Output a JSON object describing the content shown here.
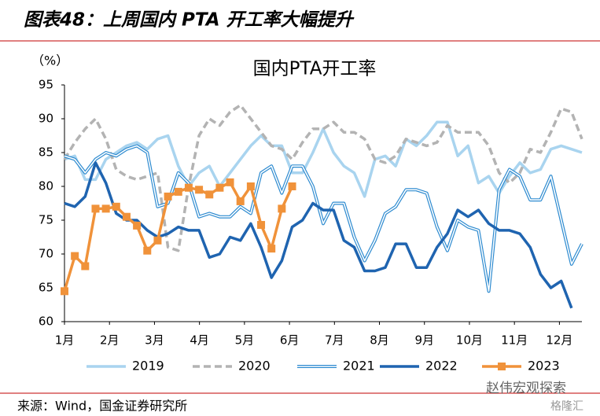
{
  "header": {
    "title": "图表48：上周国内 PTA 开工率大幅提升"
  },
  "source": "来源：Wind，国金证券研究所",
  "watermark": {
    "name": "赵伟宏观探索",
    "logo": "格隆汇"
  },
  "chart_data": {
    "type": "line",
    "title": "国内PTA开工率",
    "y_label": "（%）",
    "x": [
      1,
      1.23,
      1.46,
      1.69,
      1.92,
      2.15,
      2.38,
      2.61,
      2.84,
      3.07,
      3.3,
      3.53,
      3.76,
      3.99,
      4.22,
      4.45,
      4.68,
      4.91,
      5.14,
      5.37,
      5.6,
      5.83,
      6.06,
      6.29,
      6.52,
      6.75,
      6.98,
      7.21,
      7.44,
      7.67,
      7.9,
      8.13,
      8.36,
      8.59,
      8.82,
      9.05,
      9.28,
      9.51,
      9.74,
      9.97,
      10.2,
      10.43,
      10.66,
      10.89,
      11.12,
      11.35,
      11.58,
      11.81,
      12.04,
      12.27,
      12.5
    ],
    "xlim": [
      1,
      12.5
    ],
    "xticks": [
      {
        "value": 1,
        "label": "1月"
      },
      {
        "value": 2,
        "label": "2月"
      },
      {
        "value": 3,
        "label": "3月"
      },
      {
        "value": 4,
        "label": "4月"
      },
      {
        "value": 5,
        "label": "5月"
      },
      {
        "value": 6,
        "label": "6月"
      },
      {
        "value": 7,
        "label": "7月"
      },
      {
        "value": 8,
        "label": "8月"
      },
      {
        "value": 9,
        "label": "9月"
      },
      {
        "value": 10,
        "label": "10月"
      },
      {
        "value": 11,
        "label": "11月"
      },
      {
        "value": 12,
        "label": "12月"
      }
    ],
    "ylim": [
      60,
      95
    ],
    "yticks": [
      60,
      65,
      70,
      75,
      80,
      85,
      90,
      95
    ],
    "grid": false,
    "legend": "bottom",
    "series": [
      {
        "name": "2019",
        "color": "#a9d4ef",
        "line_style": "solid",
        "values": [
          84,
          84.5,
          81,
          81,
          84,
          85,
          86,
          86.5,
          85.5,
          87,
          87.5,
          83,
          80,
          82,
          83,
          80,
          82,
          84,
          86,
          87.5,
          86,
          86,
          82,
          82,
          85,
          88.5,
          85,
          83,
          82,
          78.5,
          84,
          84.5,
          83,
          87,
          86,
          87.5,
          89.5,
          89.5,
          84.5,
          86,
          80.5,
          81.5,
          79,
          81.5,
          83.5,
          82,
          82.5,
          85.5,
          86,
          85.5,
          85
        ]
      },
      {
        "name": "2020",
        "color": "#b3b3b3",
        "line_style": "dashed",
        "values": [
          84,
          86.5,
          88.5,
          90,
          87,
          82.5,
          81.5,
          81,
          81.5,
          82,
          71,
          70.5,
          80,
          87.5,
          90,
          89,
          91,
          92,
          90,
          88,
          86,
          85.5,
          84,
          86.5,
          88.5,
          88.5,
          89.5,
          88,
          88,
          87,
          84,
          83.5,
          84.5,
          87,
          86.5,
          86,
          86.5,
          89,
          88,
          88,
          88,
          86,
          82,
          80.5,
          82,
          85.5,
          85,
          88,
          91.5,
          91,
          87
        ]
      },
      {
        "name": "2021",
        "color": "#2e8bd0",
        "line_style": "double",
        "values": [
          84.5,
          84,
          82,
          84,
          85,
          84.5,
          85.5,
          86,
          85,
          77,
          77.5,
          82,
          80.5,
          75.5,
          76,
          75.5,
          75.5,
          77,
          76,
          82,
          83,
          79,
          83,
          83,
          80,
          74.5,
          77.5,
          77.5,
          72.5,
          69,
          72,
          76,
          77,
          79.5,
          79.5,
          79,
          74,
          70.5,
          75,
          74,
          73.5,
          64.5,
          79.5,
          82.5,
          81.5,
          78,
          78,
          81.5,
          75,
          68.5,
          71.5
        ]
      },
      {
        "name": "2022",
        "color": "#1f64b0",
        "line_style": "solid",
        "values": [
          77.5,
          77,
          78.5,
          83.5,
          80.5,
          76,
          75,
          75,
          73.5,
          72.5,
          73,
          74,
          73.5,
          73.5,
          69.5,
          70,
          72.5,
          72,
          74.5,
          71,
          66.5,
          69,
          74,
          75,
          77.5,
          76.5,
          76.5,
          72,
          71,
          67.5,
          67.5,
          68,
          71.5,
          71.5,
          68,
          68,
          71,
          73,
          76.5,
          75.5,
          76.5,
          74.5,
          73.5,
          73.5,
          73,
          71,
          67,
          65,
          66,
          62,
          null
        ]
      },
      {
        "name": "2023",
        "color": "#f0923a",
        "line_style": "solid",
        "marker": "square",
        "values": [
          64.5,
          69.7,
          68.2,
          76.7,
          76.7,
          77,
          75.5,
          74.2,
          70.5,
          72,
          78.5,
          79.2,
          79.8,
          79.5,
          78.8,
          79.8,
          80.6,
          77.8,
          80,
          74.3,
          70.8,
          76.7,
          80,
          null,
          null,
          null,
          null,
          null,
          null,
          null,
          null,
          null,
          null,
          null,
          null,
          null,
          null,
          null,
          null,
          null,
          null,
          null,
          null,
          null,
          null,
          null,
          null,
          null,
          null,
          null,
          null
        ]
      }
    ]
  }
}
